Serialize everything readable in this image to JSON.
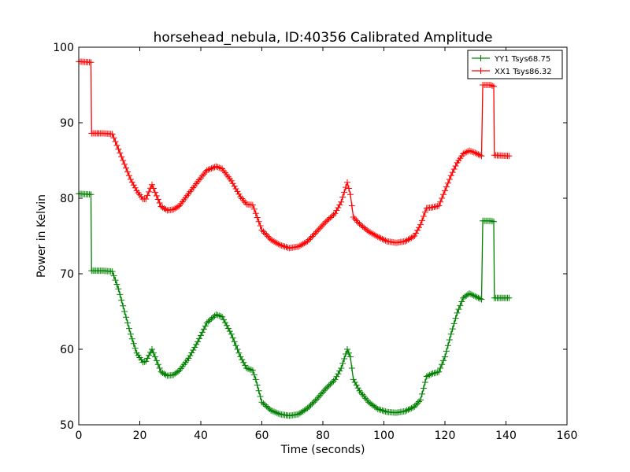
{
  "chart_data": {
    "type": "line",
    "title": "horsehead_nebula, ID:40356 Calibrated Amplitude",
    "xlabel": "Time (seconds)",
    "ylabel": "Power in Kelvin",
    "xlim": [
      0,
      160
    ],
    "ylim": [
      50,
      100
    ],
    "xticks": [
      0,
      20,
      40,
      60,
      80,
      100,
      120,
      140,
      160
    ],
    "yticks": [
      50,
      60,
      70,
      80,
      90,
      100
    ],
    "grid": false,
    "legend_position": "top-right",
    "marker": "+",
    "series": [
      {
        "name": "YY1 Tsys68.75",
        "color": "#008000",
        "points": [
          [
            0,
            80.6
          ],
          [
            4,
            80.5
          ],
          [
            4.2,
            70.4
          ],
          [
            8,
            70.4
          ],
          [
            11,
            70.3
          ],
          [
            13,
            68
          ],
          [
            15,
            65
          ],
          [
            17,
            62
          ],
          [
            19,
            59.5
          ],
          [
            21,
            58.3
          ],
          [
            22,
            58.4
          ],
          [
            24,
            60
          ],
          [
            25,
            59
          ],
          [
            27,
            57
          ],
          [
            29,
            56.5
          ],
          [
            31,
            56.6
          ],
          [
            33,
            57.2
          ],
          [
            36,
            58.8
          ],
          [
            39,
            61
          ],
          [
            42,
            63.5
          ],
          [
            45,
            64.6
          ],
          [
            47,
            64.3
          ],
          [
            50,
            62
          ],
          [
            53,
            59
          ],
          [
            55,
            57.5
          ],
          [
            57,
            57.2
          ],
          [
            58,
            56
          ],
          [
            60,
            53
          ],
          [
            63,
            51.9
          ],
          [
            66,
            51.4
          ],
          [
            69,
            51.2
          ],
          [
            72,
            51.4
          ],
          [
            75,
            52.2
          ],
          [
            78,
            53.4
          ],
          [
            81,
            54.8
          ],
          [
            84,
            56
          ],
          [
            86,
            57.5
          ],
          [
            88,
            60
          ],
          [
            89,
            59
          ],
          [
            90,
            56
          ],
          [
            92,
            54.5
          ],
          [
            95,
            53
          ],
          [
            98,
            52.1
          ],
          [
            101,
            51.7
          ],
          [
            104,
            51.6
          ],
          [
            107,
            51.8
          ],
          [
            110,
            52.4
          ],
          [
            112,
            53.3
          ],
          [
            114,
            56.4
          ],
          [
            116,
            56.8
          ],
          [
            118,
            57
          ],
          [
            120,
            59
          ],
          [
            122,
            62
          ],
          [
            124,
            64.8
          ],
          [
            126,
            66.8
          ],
          [
            128,
            67.4
          ],
          [
            130,
            67
          ],
          [
            132,
            66.6
          ],
          [
            132.4,
            77
          ],
          [
            135,
            77
          ],
          [
            136,
            76.9
          ],
          [
            136.2,
            66.8
          ],
          [
            141,
            66.8
          ]
        ]
      },
      {
        "name": "XX1 Tsys86.32",
        "color": "#ff0000",
        "points": [
          [
            0,
            98.1
          ],
          [
            4,
            98
          ],
          [
            4.2,
            88.6
          ],
          [
            8,
            88.6
          ],
          [
            11,
            88.5
          ],
          [
            13,
            86.5
          ],
          [
            15,
            84.5
          ],
          [
            17,
            82.5
          ],
          [
            19,
            81
          ],
          [
            21,
            79.9
          ],
          [
            22,
            79.9
          ],
          [
            24,
            81.8
          ],
          [
            25,
            80.8
          ],
          [
            27,
            78.9
          ],
          [
            29,
            78.4
          ],
          [
            31,
            78.5
          ],
          [
            33,
            79
          ],
          [
            36,
            80.6
          ],
          [
            39,
            82.2
          ],
          [
            42,
            83.7
          ],
          [
            45,
            84.2
          ],
          [
            47,
            83.9
          ],
          [
            50,
            82.3
          ],
          [
            53,
            80.2
          ],
          [
            55,
            79.2
          ],
          [
            57,
            79.1
          ],
          [
            58,
            78
          ],
          [
            60,
            75.8
          ],
          [
            63,
            74.5
          ],
          [
            66,
            73.8
          ],
          [
            69,
            73.4
          ],
          [
            72,
            73.6
          ],
          [
            75,
            74.3
          ],
          [
            78,
            75.6
          ],
          [
            81,
            76.9
          ],
          [
            84,
            78
          ],
          [
            86,
            79.5
          ],
          [
            88,
            82.1
          ],
          [
            89,
            80.5
          ],
          [
            90,
            77.5
          ],
          [
            92,
            76.6
          ],
          [
            95,
            75.6
          ],
          [
            98,
            74.9
          ],
          [
            101,
            74.3
          ],
          [
            104,
            74.1
          ],
          [
            107,
            74.3
          ],
          [
            110,
            75
          ],
          [
            112,
            76.5
          ],
          [
            114,
            78.7
          ],
          [
            116,
            78.8
          ],
          [
            118,
            79
          ],
          [
            120,
            81
          ],
          [
            122,
            83
          ],
          [
            124,
            84.7
          ],
          [
            126,
            85.9
          ],
          [
            128,
            86.3
          ],
          [
            130,
            86
          ],
          [
            132,
            85.6
          ],
          [
            132.4,
            95
          ],
          [
            135,
            95
          ],
          [
            136,
            94.8
          ],
          [
            136.2,
            85.7
          ],
          [
            141,
            85.6
          ]
        ]
      }
    ]
  }
}
